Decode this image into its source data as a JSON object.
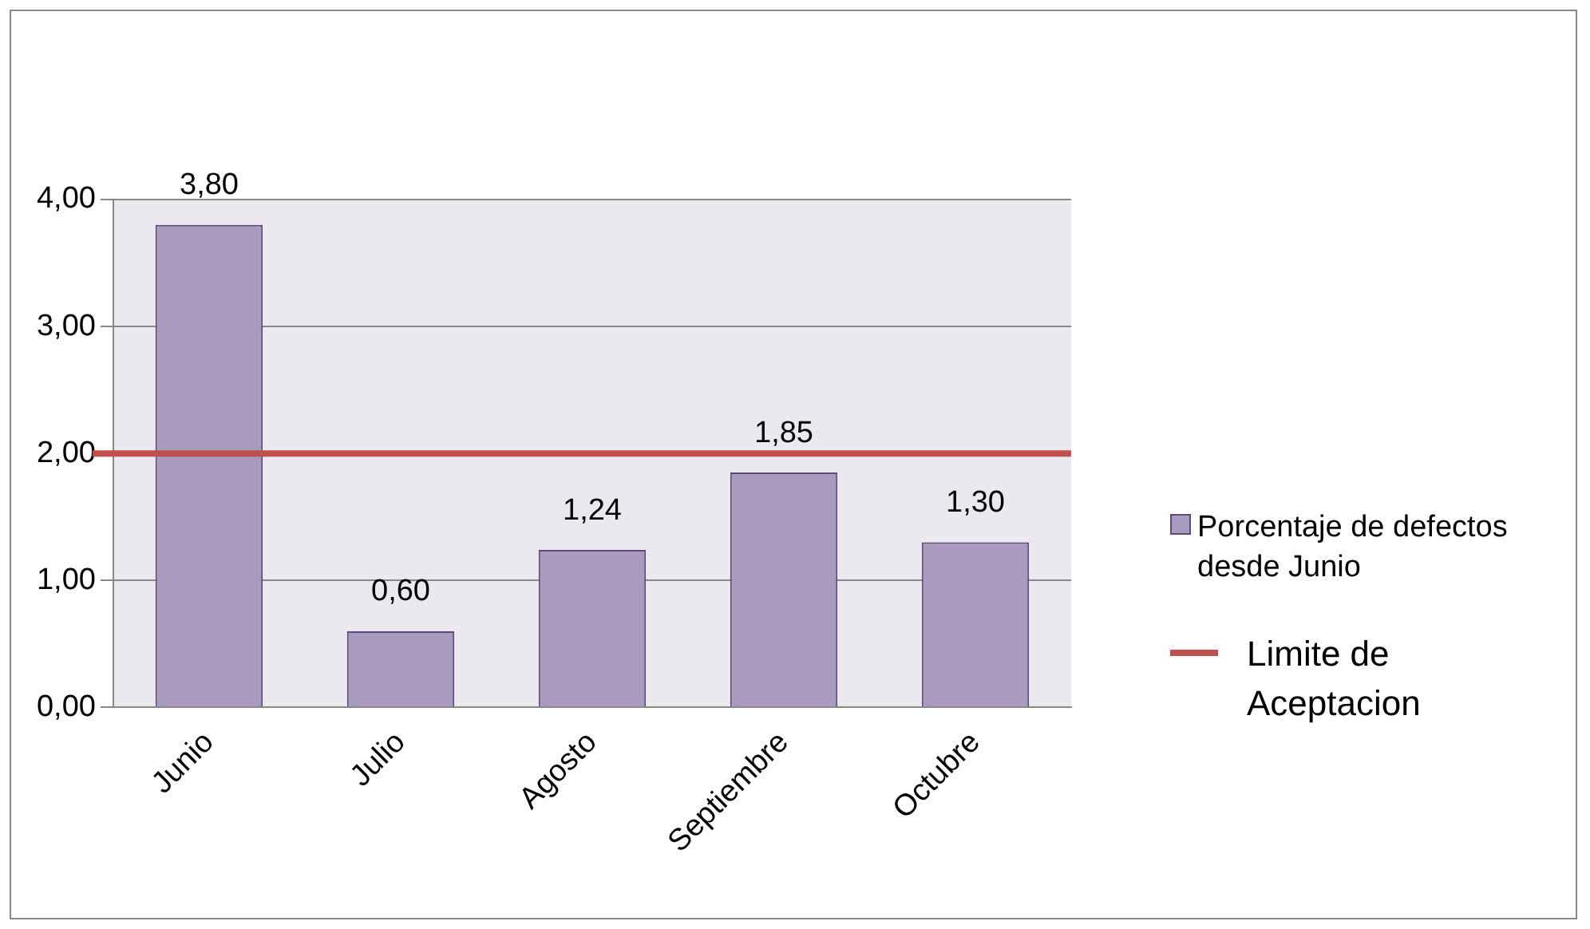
{
  "chart_data": {
    "type": "bar",
    "categories": [
      "Junio",
      "Julio",
      "Agosto",
      "Septiembre",
      "Octubre"
    ],
    "series": [
      {
        "name": "Porcentaje de defectos desde Junio",
        "color": "#a99bbd",
        "values": [
          3.8,
          0.6,
          1.24,
          1.85,
          1.3
        ],
        "value_labels": [
          "3,80",
          "0,60",
          "1,24",
          "1,85",
          "1,30"
        ]
      }
    ],
    "ylim": [
      0,
      4
    ],
    "yticks": [
      {
        "value": 0,
        "label": "0,00"
      },
      {
        "value": 1,
        "label": "1,00"
      },
      {
        "value": 2,
        "label": "2,00"
      },
      {
        "value": 3,
        "label": "3,00"
      },
      {
        "value": 4,
        "label": "4,00"
      }
    ],
    "ref_lines": [
      {
        "axis": "y",
        "value": 2,
        "label": "Limite de Aceptacion",
        "color": "#c0504d"
      }
    ],
    "grid": "y",
    "legend": "right"
  }
}
